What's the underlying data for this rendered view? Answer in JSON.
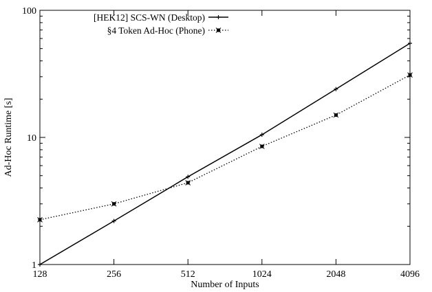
{
  "chart_data": {
    "type": "line",
    "title": "",
    "xlabel": "Number of Inputs",
    "ylabel": "Ad-Hoc Runtime [s]",
    "x_scale": "log2",
    "y_scale": "log10",
    "xlim": [
      128,
      4096
    ],
    "ylim": [
      1,
      100
    ],
    "x_ticks": [
      "128",
      "256",
      "512",
      "1024",
      "2048",
      "4096"
    ],
    "y_ticks": [
      "1",
      "10",
      "100"
    ],
    "grid": false,
    "legend_position": "top-left",
    "x": [
      128,
      256,
      512,
      1024,
      2048,
      4096
    ],
    "series": [
      {
        "name": "[HEK12] SCS-WN (Desktop)",
        "style": "solid",
        "marker": "plus",
        "color": "#000000",
        "values": [
          1.0,
          2.2,
          4.9,
          10.5,
          24,
          55
        ]
      },
      {
        "name": "§4 Token Ad-Hoc (Phone)",
        "style": "dotted",
        "marker": "box",
        "color": "#000000",
        "values": [
          2.25,
          3.0,
          4.4,
          8.5,
          15,
          31
        ]
      }
    ]
  }
}
